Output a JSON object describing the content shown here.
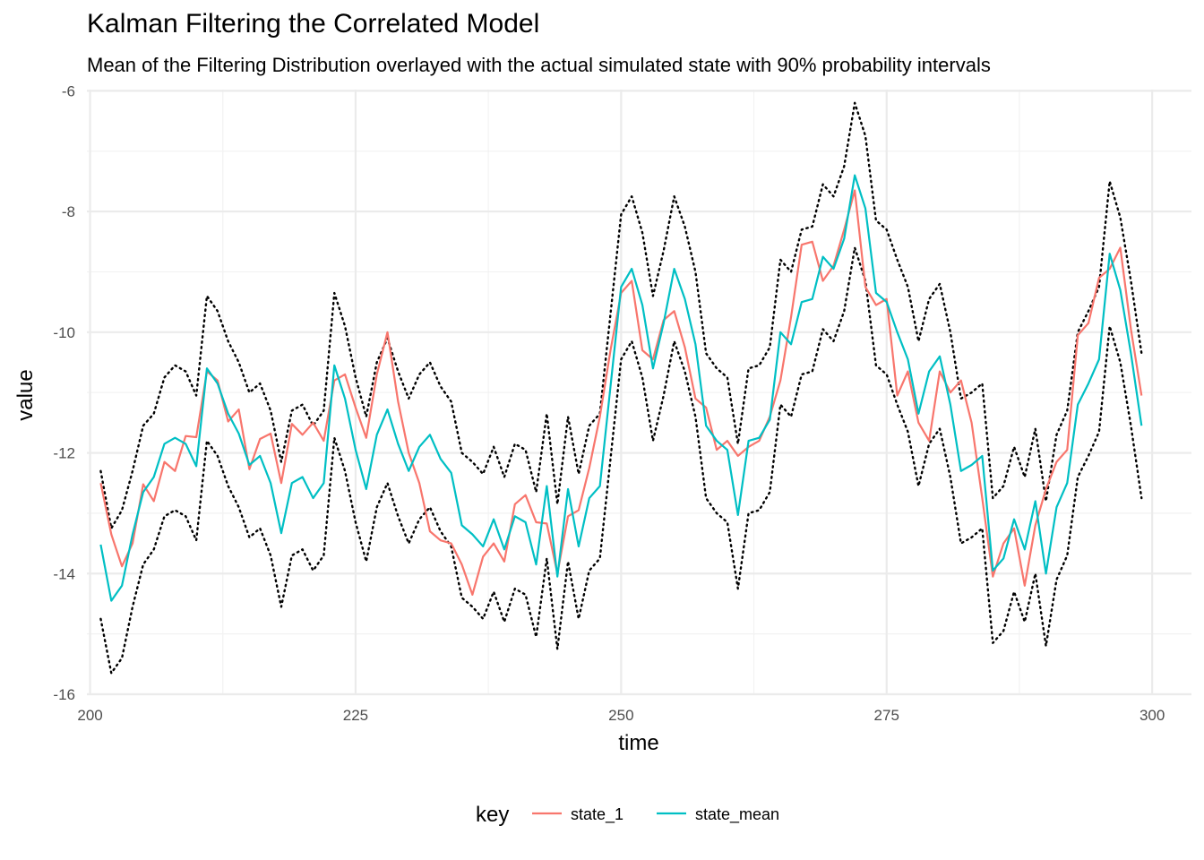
{
  "chart_data": {
    "type": "line",
    "title": "Kalman Filtering the Correlated Model",
    "subtitle": "Mean of the Filtering Distribution overlayed with the actual simulated state with 90% probability intervals",
    "xlabel": "time",
    "ylabel": "value",
    "xlim": [
      199.7,
      303.7
    ],
    "ylim": [
      -16.0,
      -5.98
    ],
    "x_ticks": [
      200,
      225,
      250,
      275,
      300
    ],
    "x_tick_labels": [
      "200",
      "225",
      "250",
      "275",
      "300"
    ],
    "y_ticks": [
      -16,
      -14,
      -12,
      -10,
      -8,
      -6
    ],
    "y_tick_labels": [
      "-16",
      "-14",
      "-12",
      "-10",
      "-8",
      "-6"
    ],
    "grid": true,
    "legend": {
      "title": "key",
      "position": "bottom"
    },
    "x_start": 201,
    "series": [
      {
        "name": "state_1",
        "color": "#f8766d",
        "style": "solid",
        "values": [
          -12.5,
          -13.35,
          -13.88,
          -13.5,
          -12.52,
          -12.8,
          -12.15,
          -12.3,
          -11.72,
          -11.74,
          -10.65,
          -10.8,
          -11.48,
          -11.28,
          -12.27,
          -11.77,
          -11.68,
          -12.5,
          -11.52,
          -11.7,
          -11.5,
          -11.8,
          -10.8,
          -10.7,
          -11.25,
          -11.75,
          -10.7,
          -10.0,
          -11.15,
          -12.0,
          -12.5,
          -13.3,
          -13.45,
          -13.5,
          -13.85,
          -14.35,
          -13.72,
          -13.5,
          -13.8,
          -12.85,
          -12.7,
          -13.15,
          -13.17,
          -14.0,
          -13.05,
          -12.95,
          -12.25,
          -11.4,
          -10.3,
          -9.35,
          -9.15,
          -10.3,
          -10.45,
          -9.8,
          -9.65,
          -10.25,
          -11.1,
          -11.25,
          -11.95,
          -11.8,
          -12.05,
          -11.9,
          -11.8,
          -11.4,
          -10.8,
          -9.75,
          -8.55,
          -8.5,
          -9.15,
          -8.9,
          -8.3,
          -7.65,
          -9.25,
          -9.55,
          -9.45,
          -11.05,
          -10.65,
          -11.5,
          -11.8,
          -10.65,
          -11.0,
          -10.8,
          -11.5,
          -12.75,
          -14.05,
          -13.5,
          -13.25,
          -14.2,
          -13.2,
          -12.6,
          -12.15,
          -11.95,
          -10.05,
          -9.85,
          -9.1,
          -8.95,
          -8.6,
          -9.95,
          -11.05
        ]
      },
      {
        "name": "state_mean",
        "color": "#00bfc4",
        "style": "solid",
        "values": [
          -13.52,
          -14.45,
          -14.2,
          -13.35,
          -12.65,
          -12.4,
          -11.85,
          -11.75,
          -11.85,
          -12.22,
          -10.6,
          -10.85,
          -11.35,
          -11.68,
          -12.2,
          -12.05,
          -12.5,
          -13.33,
          -12.5,
          -12.4,
          -12.75,
          -12.5,
          -10.55,
          -11.1,
          -11.95,
          -12.6,
          -11.7,
          -11.28,
          -11.85,
          -12.3,
          -11.9,
          -11.7,
          -12.1,
          -12.33,
          -13.2,
          -13.35,
          -13.55,
          -13.1,
          -13.6,
          -13.05,
          -13.15,
          -13.85,
          -12.55,
          -14.05,
          -12.6,
          -13.55,
          -12.75,
          -12.55,
          -10.9,
          -9.25,
          -8.95,
          -9.55,
          -10.6,
          -9.85,
          -8.95,
          -9.45,
          -10.2,
          -11.55,
          -11.8,
          -11.95,
          -13.03,
          -11.8,
          -11.75,
          -11.45,
          -10.0,
          -10.2,
          -9.5,
          -9.45,
          -8.75,
          -8.95,
          -8.45,
          -7.4,
          -7.95,
          -9.35,
          -9.5,
          -10.0,
          -10.45,
          -11.35,
          -10.65,
          -10.4,
          -11.2,
          -12.3,
          -12.2,
          -12.05,
          -13.95,
          -13.75,
          -13.1,
          -13.6,
          -12.8,
          -14.0,
          -12.9,
          -12.5,
          -11.2,
          -10.85,
          -10.45,
          -8.7,
          -9.3,
          -10.35,
          -11.55
        ]
      },
      {
        "color": "#000000",
        "style": "dotted",
        "values": [
          -12.3,
          -13.25,
          -12.95,
          -12.3,
          -11.55,
          -11.35,
          -10.75,
          -10.55,
          -10.65,
          -11.05,
          -9.4,
          -9.65,
          -10.15,
          -10.5,
          -11.0,
          -10.85,
          -11.3,
          -12.15,
          -11.3,
          -11.2,
          -11.55,
          -11.3,
          -9.35,
          -9.9,
          -10.75,
          -11.4,
          -10.5,
          -10.1,
          -10.65,
          -11.1,
          -10.7,
          -10.5,
          -10.9,
          -11.15,
          -12.0,
          -12.15,
          -12.35,
          -11.9,
          -12.4,
          -11.85,
          -11.95,
          -12.65,
          -11.35,
          -12.85,
          -11.4,
          -12.35,
          -11.55,
          -11.35,
          -9.7,
          -8.05,
          -7.75,
          -8.35,
          -9.4,
          -8.65,
          -7.75,
          -8.25,
          -9.0,
          -10.35,
          -10.6,
          -10.75,
          -11.85,
          -10.6,
          -10.55,
          -10.25,
          -8.8,
          -9.0,
          -8.3,
          -8.25,
          -7.55,
          -7.75,
          -7.25,
          -6.2,
          -6.75,
          -8.15,
          -8.3,
          -8.8,
          -9.25,
          -10.15,
          -9.45,
          -9.2,
          -10.0,
          -11.1,
          -11.0,
          -10.85,
          -12.75,
          -12.55,
          -11.9,
          -12.4,
          -11.6,
          -12.8,
          -11.7,
          -11.3,
          -10.0,
          -9.65,
          -9.25,
          -7.5,
          -8.1,
          -9.15,
          -10.35
        ]
      },
      {
        "color": "#000000",
        "style": "dotted",
        "values": [
          -14.75,
          -15.65,
          -15.4,
          -14.55,
          -13.85,
          -13.6,
          -13.05,
          -12.95,
          -13.05,
          -13.45,
          -11.8,
          -12.05,
          -12.55,
          -12.9,
          -13.4,
          -13.25,
          -13.7,
          -14.55,
          -13.7,
          -13.6,
          -13.95,
          -13.7,
          -11.75,
          -12.3,
          -13.15,
          -13.8,
          -12.9,
          -12.5,
          -13.05,
          -13.5,
          -13.1,
          -12.9,
          -13.3,
          -13.55,
          -14.4,
          -14.55,
          -14.75,
          -14.3,
          -14.8,
          -14.25,
          -14.35,
          -15.05,
          -13.75,
          -15.25,
          -13.8,
          -14.75,
          -13.95,
          -13.75,
          -12.1,
          -10.45,
          -10.15,
          -10.75,
          -11.8,
          -11.05,
          -10.15,
          -10.65,
          -11.4,
          -12.75,
          -13.0,
          -13.15,
          -14.25,
          -13.0,
          -12.95,
          -12.65,
          -11.2,
          -11.4,
          -10.7,
          -10.65,
          -9.95,
          -10.15,
          -9.65,
          -8.6,
          -9.15,
          -10.55,
          -10.7,
          -11.2,
          -11.65,
          -12.55,
          -11.85,
          -11.6,
          -12.4,
          -13.5,
          -13.4,
          -13.25,
          -15.15,
          -14.95,
          -14.3,
          -14.8,
          -14.0,
          -15.2,
          -14.1,
          -13.7,
          -12.4,
          -12.05,
          -11.65,
          -9.9,
          -10.5,
          -11.55,
          -12.75
        ]
      }
    ]
  }
}
